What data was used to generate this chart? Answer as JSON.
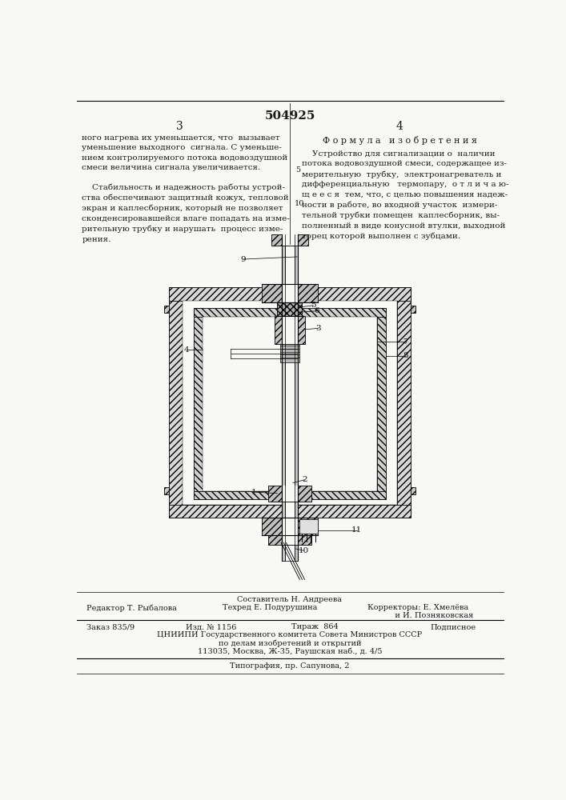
{
  "patent_number": "504925",
  "page_col_left": "3",
  "page_col_right": "4",
  "text_left_top": "ного нагрева их уменьшается, что  вызывает\nуменьшение выходного  сигнала. С уменьше-\nнием контролируемого потока водовоздушной\nсмеси величина сигнала увеличивается.",
  "text_left_bottom": "    Стабильность и надежность работы устрой-\nства обеспечивают защитный кожух, тепловой\nэкран и каплесборник, который не позволяет\nсконденсировавшейся влаге попадать на изме-\nрительную трубку и нарушать  процесс изме-\nрения.",
  "right_header": "Ф о р м у л а   и з о б р е т е н и я",
  "text_right": "    Устройство для сигнализации о  наличии\nпотока водовоздушной смеси, содержащее из-\nмерительную  трубку,  электронагреватель и\nдифференциальную   термопару,  о т л и ч а ю-\nщ е е с я  тем, что, с целью повышения надеж-\nности в работе, во входной участок  измери-\nтельной трубки помещен  каплесборник, вы-\nполненный в виде конусной втулки, выходной\nторец которой выполнен с зубцами.",
  "line_number_5": "5",
  "line_number_10": "10",
  "compiler_label": "Составитель Н. Андреева",
  "editor_label": "Редактор Т. Рыбалова",
  "tech_editor_label": "Техред Е. Подурушина",
  "corrector_label1": "Корректоры: Е. Хмелёва",
  "corrector_label2": "           и И. Позняковская",
  "order_label": "Заказ 835/9",
  "edition_label": "Изд. № 1156",
  "circulation_label": "Тираж  864",
  "subscription_label": "Подписное",
  "org_line1": "ЦНИИПИ Государственного комитета Совета Министров СССР",
  "org_line2": "по делам изобретений и открытий",
  "org_line3": "113035, Москва, Ж-35, Раушская наб., д. 4/5",
  "typography_label": "Типография, пр. Сапунова, 2",
  "bg_color": "#f8f8f5",
  "text_color": "#1a1a1a",
  "line_color": "#000000"
}
